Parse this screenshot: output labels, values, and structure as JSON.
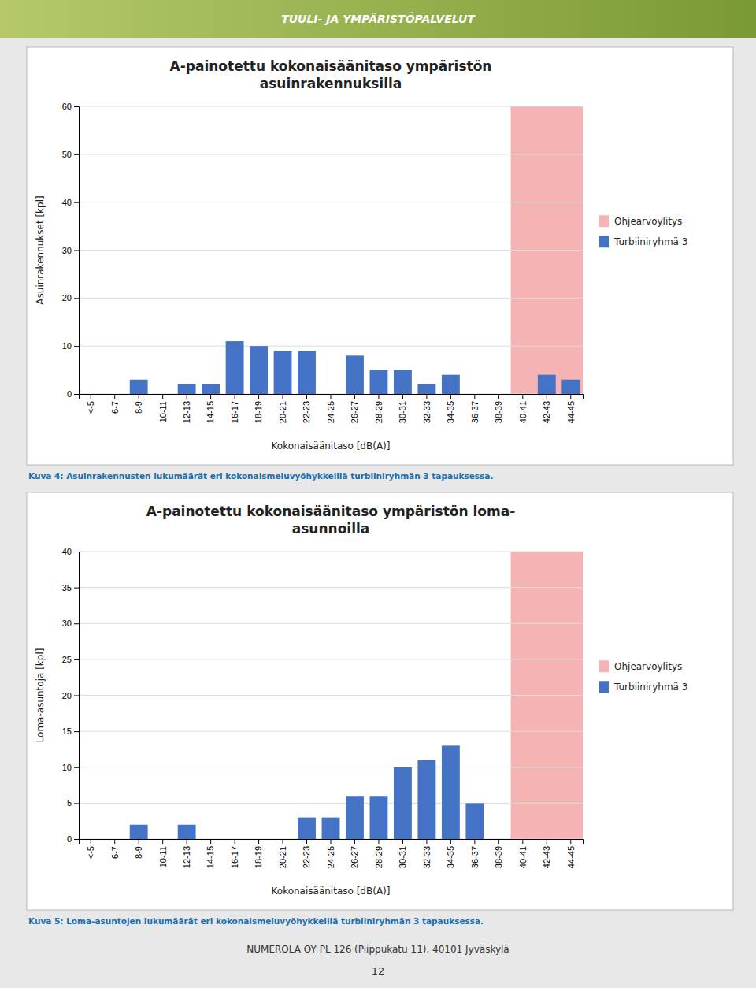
{
  "header": "TUULI- JA YMPÄRISTÖPALVELUT",
  "footer": "NUMEROLA OY PL 126 (Piippukatu 11), 40101 Jyväskylä",
  "page_number": "12",
  "chart_data": [
    {
      "type": "bar",
      "title": [
        "A-painotettu kokonaisäänitaso ympäristön",
        "asuinrakennuksilla"
      ],
      "caption": "Kuva 4: Asuinrakennusten lukumäärät eri kokonaismeluvyöhykkeillä turbiiniryhmän 3 tapauksessa.",
      "xlabel": "Kokonaisäänitaso [dB(A)]",
      "ylabel": "Asuinrakennukset [kpl]",
      "categories": [
        "<-5",
        "6-7",
        "8-9",
        "10-11",
        "12-13",
        "14-15",
        "16-17",
        "18-19",
        "20-21",
        "22-23",
        "24-25",
        "26-27",
        "28-29",
        "30-31",
        "32-33",
        "34-35",
        "36-37",
        "38-39",
        "40-41",
        "42-43",
        "44-45"
      ],
      "highlight": {
        "name": "Ohjearvoylitys",
        "color": "#f08080",
        "from": "40-41",
        "to": "44-45"
      },
      "series": [
        {
          "name": "Turbiiniryhmä 3",
          "color": "#4472c4",
          "values": [
            0,
            0,
            3,
            0,
            2,
            2,
            11,
            10,
            9,
            9,
            0,
            8,
            5,
            5,
            2,
            4,
            0,
            0,
            0,
            4,
            3
          ]
        }
      ],
      "ylim": [
        0,
        60
      ],
      "yticks": [
        0,
        10,
        20,
        30,
        40,
        50,
        60
      ],
      "grid": true,
      "legend": "right"
    },
    {
      "type": "bar",
      "title": [
        "A-painotettu kokonaisäänitaso ympäristön loma-",
        "asunnoilla"
      ],
      "caption": "Kuva 5: Loma-asuntojen lukumäärät eri kokonaismeluvyöhykkeillä turbiiniryhmän 3 tapauksessa.",
      "xlabel": "Kokonaisäänitaso [dB(A)]",
      "ylabel": "Loma-asuntoja [kpl]",
      "categories": [
        "<-5",
        "6-7",
        "8-9",
        "10-11",
        "12-13",
        "14-15",
        "16-17",
        "18-19",
        "20-21",
        "22-23",
        "24-25",
        "26-27",
        "28-29",
        "30-31",
        "32-33",
        "34-35",
        "36-37",
        "38-39",
        "40-41",
        "42-43",
        "44-45"
      ],
      "highlight": {
        "name": "Ohjearvoylitys",
        "color": "#f08080",
        "from": "40-41",
        "to": "44-45"
      },
      "series": [
        {
          "name": "Turbiiniryhmä 3",
          "color": "#4472c4",
          "values": [
            0,
            0,
            2,
            0,
            2,
            0,
            0,
            0,
            0,
            3,
            3,
            6,
            6,
            10,
            11,
            13,
            5,
            0,
            0,
            0,
            0
          ]
        }
      ],
      "ylim": [
        0,
        40
      ],
      "yticks": [
        0,
        5,
        10,
        15,
        20,
        25,
        30,
        35,
        40
      ],
      "grid": true,
      "legend": "right"
    }
  ]
}
